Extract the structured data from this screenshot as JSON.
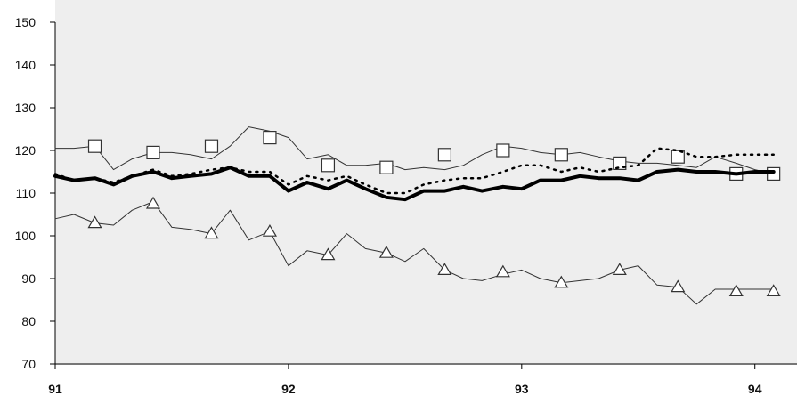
{
  "chart_data": {
    "type": "line",
    "title": "",
    "xlabel": "",
    "ylabel": "",
    "xlim": [
      91,
      94.15
    ],
    "ylim": [
      70,
      150
    ],
    "y_ticks": [
      70,
      80,
      90,
      100,
      110,
      120,
      130,
      140,
      150
    ],
    "x_ticks": [
      {
        "value": 91,
        "label": "91"
      },
      {
        "value": 92,
        "label": "92"
      },
      {
        "value": 93,
        "label": "93"
      },
      {
        "value": 94,
        "label": "94"
      }
    ],
    "grid": false,
    "legend": "none",
    "series": [
      {
        "style": "thin",
        "marker": "square",
        "color": "#333333",
        "x": [
          91.0,
          91.08,
          91.17,
          91.25,
          91.33,
          91.42,
          91.5,
          91.58,
          91.67,
          91.75,
          91.83,
          91.92,
          92.0,
          92.08,
          92.17,
          92.25,
          92.33,
          92.42,
          92.5,
          92.58,
          92.67,
          92.75,
          92.83,
          92.92,
          93.0,
          93.08,
          93.17,
          93.25,
          93.33,
          93.42,
          93.5,
          93.58,
          93.67,
          93.75,
          93.83,
          93.92,
          94.0,
          94.08
        ],
        "y": [
          120.5,
          120.5,
          121,
          115.5,
          118,
          119.5,
          119.5,
          119,
          118,
          121,
          125.5,
          124.5,
          123,
          118,
          119,
          116.5,
          116.5,
          117,
          115.5,
          116,
          115.5,
          116.5,
          119,
          121,
          120.5,
          119.5,
          119,
          119.5,
          118.5,
          117.5,
          117,
          117,
          116.5,
          116,
          118.5,
          117,
          115.5,
          114.5
        ],
        "markers_x": [
          91.17,
          91.42,
          91.67,
          91.92,
          92.17,
          92.42,
          92.67,
          92.92,
          93.17,
          93.42,
          93.67,
          93.92,
          94.08
        ],
        "markers_y": [
          121,
          119.5,
          121,
          123,
          116.5,
          116,
          119,
          120,
          119,
          117,
          118.5,
          114.5,
          114.5
        ]
      },
      {
        "style": "thick",
        "marker": "none",
        "color": "#000000",
        "x": [
          91.0,
          91.08,
          91.17,
          91.25,
          91.33,
          91.42,
          91.5,
          91.58,
          91.67,
          91.75,
          91.83,
          91.92,
          92.0,
          92.08,
          92.17,
          92.25,
          92.33,
          92.42,
          92.5,
          92.58,
          92.67,
          92.75,
          92.83,
          92.92,
          93.0,
          93.08,
          93.17,
          93.25,
          93.33,
          93.42,
          93.5,
          93.58,
          93.67,
          93.75,
          93.83,
          93.92,
          94.0,
          94.08
        ],
        "y": [
          114,
          113,
          113.5,
          112,
          114,
          115,
          113.5,
          114,
          114.5,
          116,
          114,
          114,
          110.5,
          112.5,
          111,
          113,
          111,
          109,
          108.5,
          110.5,
          110.5,
          111.5,
          110.5,
          111.5,
          111,
          113,
          113,
          114,
          113.5,
          113.5,
          113,
          115,
          115.5,
          115,
          115,
          114.5,
          115,
          115
        ],
        "markers_x": [],
        "markers_y": []
      },
      {
        "style": "dotted",
        "marker": "none",
        "color": "#000000",
        "x": [
          91.0,
          91.08,
          91.17,
          91.25,
          91.33,
          91.42,
          91.5,
          91.58,
          91.67,
          91.75,
          91.83,
          91.92,
          92.0,
          92.08,
          92.17,
          92.25,
          92.33,
          92.42,
          92.5,
          92.58,
          92.67,
          92.75,
          92.83,
          92.92,
          93.0,
          93.08,
          93.17,
          93.25,
          93.33,
          93.42,
          93.5,
          93.58,
          93.67,
          93.75,
          93.83,
          93.92,
          94.0,
          94.08
        ],
        "y": [
          114.5,
          113,
          113.5,
          112.5,
          114,
          115.5,
          114,
          114.5,
          115.5,
          116,
          115,
          115,
          112,
          114,
          113,
          114,
          112,
          110,
          110,
          112,
          113,
          113.5,
          113.5,
          115,
          116.5,
          116.5,
          115,
          116,
          115,
          116,
          116.5,
          120.5,
          120,
          118.5,
          118.5,
          119,
          119,
          119
        ],
        "markers_x": [],
        "markers_y": []
      },
      {
        "style": "thin",
        "marker": "triangle",
        "color": "#333333",
        "x": [
          91.0,
          91.08,
          91.17,
          91.25,
          91.33,
          91.42,
          91.5,
          91.58,
          91.67,
          91.75,
          91.83,
          91.92,
          92.0,
          92.08,
          92.17,
          92.25,
          92.33,
          92.42,
          92.5,
          92.58,
          92.67,
          92.75,
          92.83,
          92.92,
          93.0,
          93.08,
          93.17,
          93.25,
          93.33,
          93.42,
          93.5,
          93.58,
          93.67,
          93.75,
          93.83,
          93.92,
          94.0,
          94.08
        ],
        "y": [
          104,
          105,
          103,
          102.5,
          106,
          108,
          102,
          101.5,
          100.5,
          106,
          99,
          101,
          93,
          96.5,
          95.5,
          100.5,
          97,
          96,
          94,
          97,
          92,
          90,
          89.5,
          91,
          92,
          90,
          89,
          89.5,
          90,
          92,
          93,
          88.5,
          88,
          84,
          87.5,
          87.5,
          87.5,
          87.5
        ],
        "markers_x": [
          91.17,
          91.42,
          91.67,
          91.92,
          92.17,
          92.42,
          92.67,
          92.92,
          93.17,
          93.42,
          93.67,
          93.92,
          94.08
        ],
        "markers_y": [
          103,
          107.5,
          100.5,
          101,
          95.5,
          96,
          92,
          91.5,
          89,
          92,
          88,
          87,
          87
        ]
      }
    ]
  }
}
